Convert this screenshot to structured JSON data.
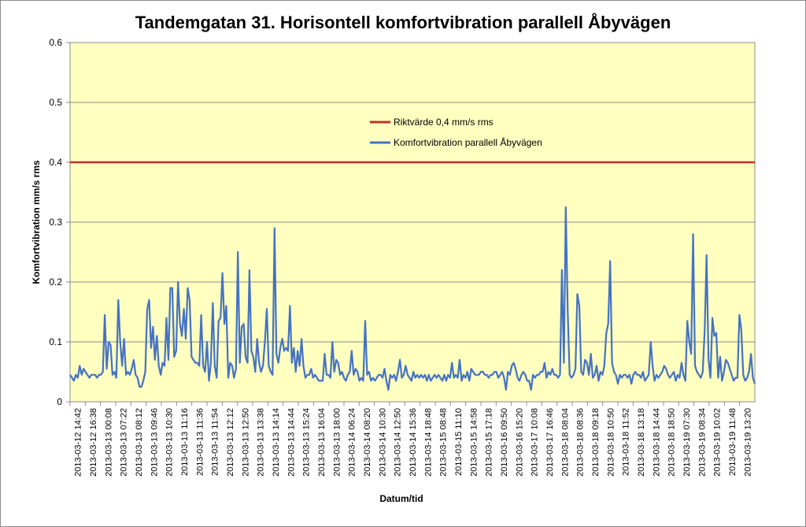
{
  "chart_data": {
    "type": "line",
    "title": "Tandemgatan 31. Horisontell komfortvibration parallell Åbyvägen",
    "xlabel": "Datum/tid",
    "ylabel": "Komfortvibration mm/s rms",
    "ylim": [
      0,
      0.6
    ],
    "yticks": [
      "0",
      "0.1",
      "0.2",
      "0.3",
      "0.4",
      "0.5",
      "0.6"
    ],
    "grid": true,
    "legend_position": "inside-right-upper",
    "plot_background": "#FFFFC0",
    "x_tick_labels": [
      "2013-03-12 14:42",
      "2013-03-12 16:38",
      "2013-03-13 00:08",
      "2013-03-13 07:22",
      "2013-03-13 08:12",
      "2013-03-13 09:46",
      "2013-03-13 10:30",
      "2013-03-13 11:16",
      "2013-03-13 11:36",
      "2013-03-13 11:54",
      "2013-03-13 12:12",
      "2013-03-13 12:50",
      "2013-03-13 13:38",
      "2013-03-13 14:14",
      "2013-03-13 14:44",
      "2013-03-13 15:24",
      "2013-03-13 16:04",
      "2013-03-13 18:00",
      "2013-03-14 06:24",
      "2013-03-14 08:20",
      "2013-03-14 10:30",
      "2013-03-14 12:50",
      "2013-03-14 15:36",
      "2013-03-14 18:48",
      "2013-03-15 08:48",
      "2013-03-15 11:10",
      "2013-03-15 14:58",
      "2013-03-15 17:18",
      "2013-03-16 09:50",
      "2013-03-16 15:20",
      "2013-03-17 10:08",
      "2013-03-17 16:46",
      "2013-03-18 08:04",
      "2013-03-18 08:36",
      "2013-03-18 09:18",
      "2013-03-18 10:50",
      "2013-03-18 11:52",
      "2013-03-18 13:18",
      "2013-03-18 14:44",
      "2013-03-18 18:50",
      "2013-03-19 07:30",
      "2013-03-19 08:34",
      "2013-03-19 10:02",
      "2013-03-19 11:48",
      "2013-03-19 13:20"
    ],
    "series": [
      {
        "name": "Riktvärde 0,4 mm/s rms",
        "color": "#C0302A",
        "values": [
          0.4,
          0.4
        ]
      },
      {
        "name": "Komfortvibration parallell Åbyvägen",
        "color": "#4472C4",
        "values": [
          0.045,
          0.04,
          0.035,
          0.045,
          0.04,
          0.06,
          0.045,
          0.055,
          0.05,
          0.045,
          0.04,
          0.045,
          0.045,
          0.045,
          0.04,
          0.045,
          0.045,
          0.05,
          0.145,
          0.055,
          0.1,
          0.095,
          0.045,
          0.05,
          0.04,
          0.17,
          0.1,
          0.06,
          0.105,
          0.045,
          0.05,
          0.045,
          0.055,
          0.07,
          0.045,
          0.04,
          0.025,
          0.025,
          0.035,
          0.05,
          0.155,
          0.17,
          0.09,
          0.125,
          0.07,
          0.11,
          0.06,
          0.045,
          0.065,
          0.06,
          0.14,
          0.07,
          0.19,
          0.19,
          0.075,
          0.085,
          0.2,
          0.13,
          0.11,
          0.155,
          0.105,
          0.19,
          0.17,
          0.075,
          0.07,
          0.065,
          0.065,
          0.06,
          0.145,
          0.06,
          0.05,
          0.1,
          0.035,
          0.065,
          0.165,
          0.06,
          0.04,
          0.135,
          0.14,
          0.215,
          0.13,
          0.16,
          0.04,
          0.065,
          0.06,
          0.04,
          0.055,
          0.25,
          0.065,
          0.125,
          0.13,
          0.075,
          0.065,
          0.22,
          0.085,
          0.075,
          0.05,
          0.105,
          0.065,
          0.05,
          0.06,
          0.1,
          0.155,
          0.06,
          0.05,
          0.045,
          0.29,
          0.08,
          0.065,
          0.09,
          0.105,
          0.085,
          0.09,
          0.085,
          0.16,
          0.065,
          0.09,
          0.05,
          0.085,
          0.06,
          0.105,
          0.06,
          0.04,
          0.045,
          0.045,
          0.055,
          0.04,
          0.045,
          0.04,
          0.035,
          0.035,
          0.035,
          0.08,
          0.045,
          0.045,
          0.04,
          0.1,
          0.05,
          0.07,
          0.065,
          0.045,
          0.05,
          0.04,
          0.035,
          0.045,
          0.05,
          0.085,
          0.045,
          0.055,
          0.05,
          0.035,
          0.04,
          0.035,
          0.135,
          0.045,
          0.05,
          0.035,
          0.04,
          0.035,
          0.04,
          0.045,
          0.045,
          0.04,
          0.055,
          0.035,
          0.02,
          0.045,
          0.04,
          0.045,
          0.035,
          0.05,
          0.07,
          0.04,
          0.045,
          0.06,
          0.045,
          0.04,
          0.035,
          0.05,
          0.04,
          0.045,
          0.04,
          0.045,
          0.04,
          0.045,
          0.035,
          0.045,
          0.035,
          0.04,
          0.045,
          0.04,
          0.045,
          0.04,
          0.035,
          0.045,
          0.035,
          0.045,
          0.04,
          0.065,
          0.04,
          0.045,
          0.04,
          0.07,
          0.035,
          0.045,
          0.04,
          0.05,
          0.035,
          0.055,
          0.05,
          0.045,
          0.045,
          0.045,
          0.05,
          0.05,
          0.045,
          0.045,
          0.04,
          0.045,
          0.045,
          0.05,
          0.05,
          0.04,
          0.045,
          0.05,
          0.04,
          0.02,
          0.05,
          0.045,
          0.06,
          0.065,
          0.055,
          0.04,
          0.035,
          0.045,
          0.05,
          0.045,
          0.035,
          0.035,
          0.02,
          0.045,
          0.04,
          0.045,
          0.045,
          0.05,
          0.05,
          0.065,
          0.04,
          0.05,
          0.045,
          0.055,
          0.045,
          0.045,
          0.04,
          0.045,
          0.22,
          0.065,
          0.325,
          0.15,
          0.045,
          0.04,
          0.045,
          0.055,
          0.18,
          0.16,
          0.05,
          0.045,
          0.07,
          0.065,
          0.045,
          0.08,
          0.04,
          0.045,
          0.06,
          0.035,
          0.05,
          0.045,
          0.06,
          0.115,
          0.13,
          0.235,
          0.065,
          0.05,
          0.045,
          0.03,
          0.045,
          0.04,
          0.045,
          0.045,
          0.04,
          0.045,
          0.03,
          0.045,
          0.05,
          0.045,
          0.045,
          0.04,
          0.05,
          0.035,
          0.04,
          0.045,
          0.1,
          0.06,
          0.035,
          0.045,
          0.04,
          0.045,
          0.05,
          0.06,
          0.055,
          0.045,
          0.04,
          0.045,
          0.05,
          0.035,
          0.045,
          0.04,
          0.065,
          0.045,
          0.035,
          0.135,
          0.1,
          0.08,
          0.28,
          0.06,
          0.05,
          0.045,
          0.04,
          0.05,
          0.12,
          0.245,
          0.07,
          0.04,
          0.14,
          0.11,
          0.115,
          0.04,
          0.075,
          0.035,
          0.05,
          0.07,
          0.065,
          0.055,
          0.045,
          0.035,
          0.04,
          0.04,
          0.145,
          0.12,
          0.045,
          0.035,
          0.04,
          0.05,
          0.08,
          0.04,
          0.03
        ]
      }
    ]
  }
}
